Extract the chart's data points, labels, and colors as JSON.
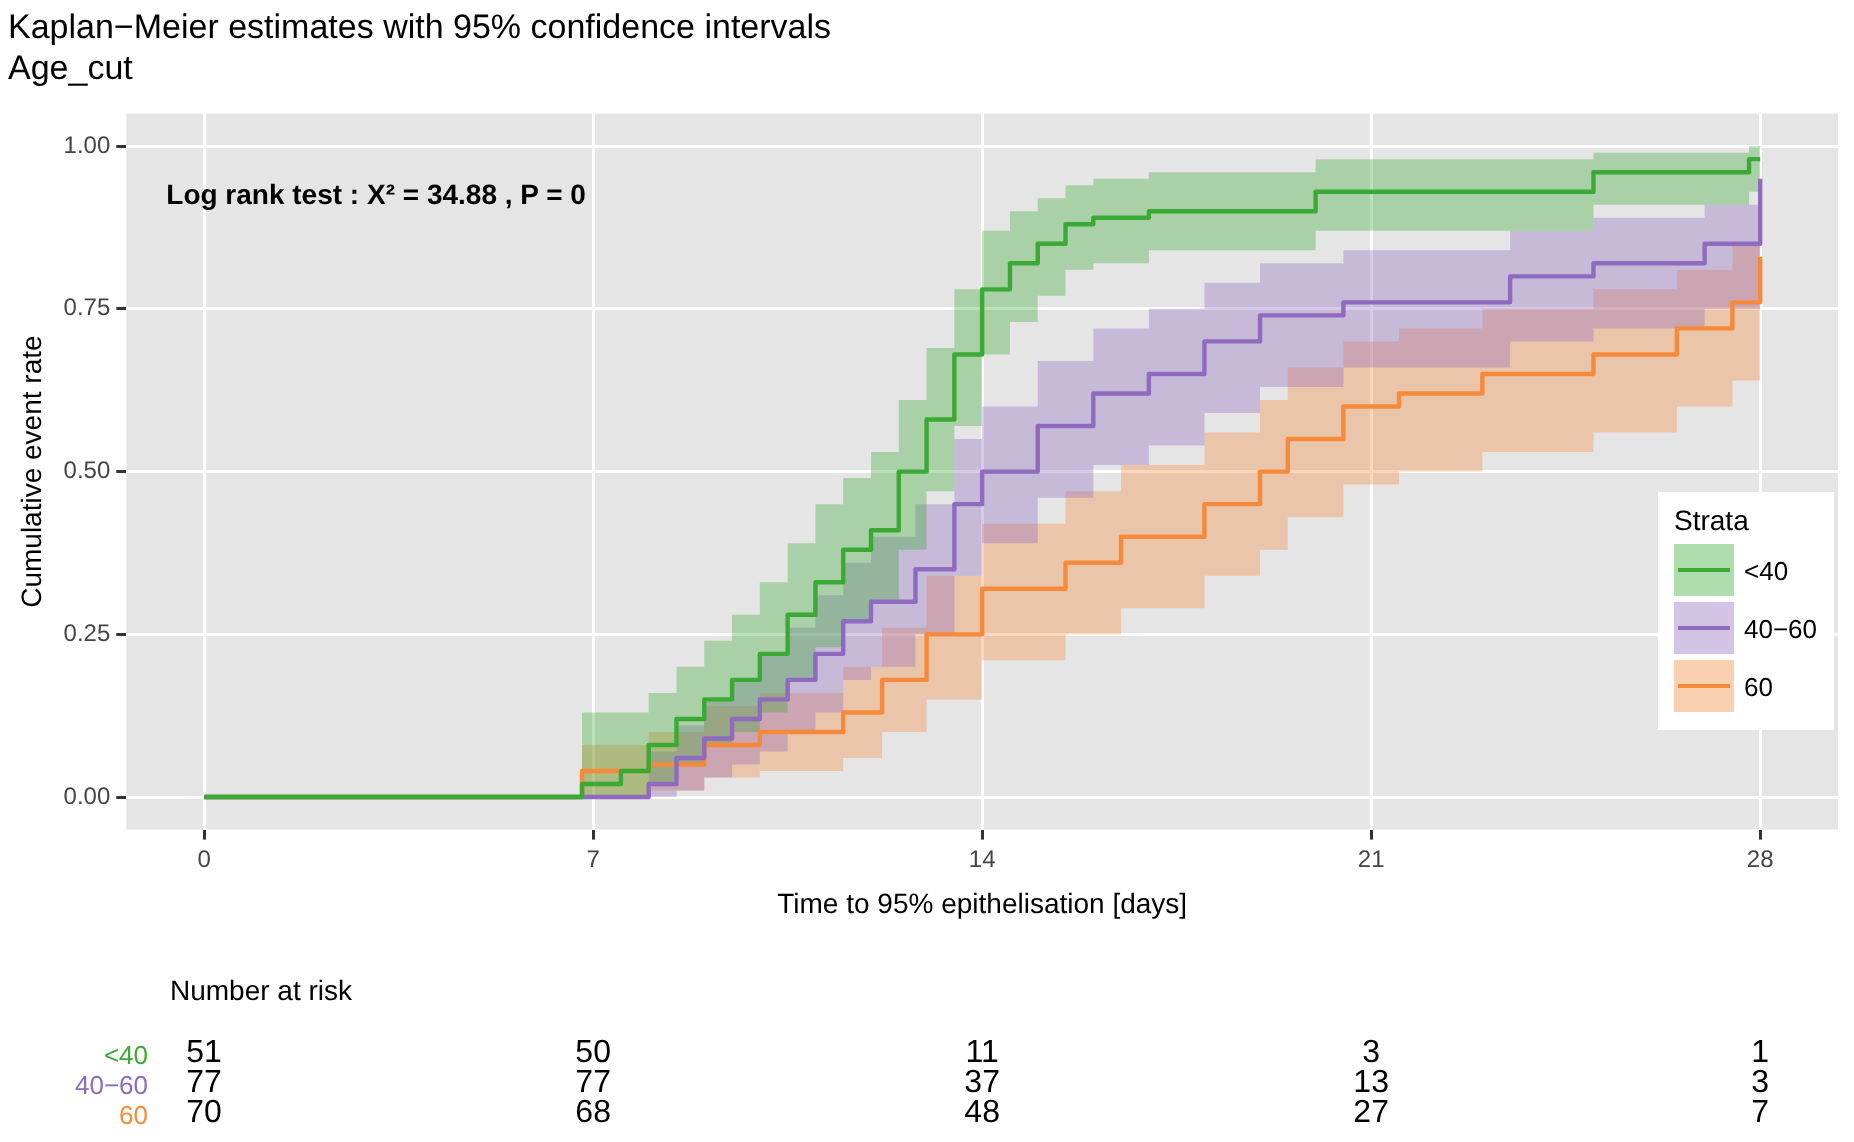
{
  "chart_data": {
    "type": "step",
    "title": "Kaplan−Meier estimates with 95% confidence intervals",
    "subtitle": "Age_cut",
    "xlabel": "Time to 95% epithelisation [days]",
    "ylabel": "Cumulative event rate",
    "legend_title": "Strata",
    "xlim": [
      -1.4,
      29.4
    ],
    "xticks": [
      0,
      7,
      14,
      21,
      28
    ],
    "ylim": [
      -0.05,
      1.05
    ],
    "yticks": [
      {
        "value": 0,
        "label": "0.00"
      },
      {
        "value": 0.25,
        "label": "0.25"
      },
      {
        "value": 0.5,
        "label": "0.50"
      },
      {
        "value": 0.75,
        "label": "0.75"
      },
      {
        "value": 1,
        "label": "1.00"
      }
    ],
    "grid": true,
    "legend": "right",
    "line_style": "solid",
    "marker": "none",
    "series": [
      {
        "name": "<40",
        "color": "#3aaa35",
        "x": [
          0,
          6.8,
          7.5,
          8,
          8.5,
          9,
          9.5,
          10,
          10.5,
          11,
          11.5,
          12,
          12.5,
          13,
          13.5,
          14,
          14.5,
          15,
          15.5,
          16,
          17,
          20,
          25,
          27.8,
          28
        ],
        "values": [
          0,
          0.02,
          0.04,
          0.08,
          0.12,
          0.15,
          0.18,
          0.22,
          0.28,
          0.33,
          0.38,
          0.41,
          0.5,
          0.58,
          0.68,
          0.78,
          0.82,
          0.85,
          0.88,
          0.89,
          0.9,
          0.93,
          0.96,
          0.98,
          0.98
        ],
        "lower": [
          0,
          0,
          0,
          0.02,
          0.05,
          0.08,
          0.1,
          0.13,
          0.18,
          0.23,
          0.27,
          0.3,
          0.38,
          0.47,
          0.57,
          0.68,
          0.73,
          0.77,
          0.81,
          0.82,
          0.84,
          0.87,
          0.91,
          0.93,
          0.93
        ],
        "upper": [
          0,
          0.13,
          0.13,
          0.16,
          0.2,
          0.24,
          0.28,
          0.33,
          0.39,
          0.45,
          0.49,
          0.53,
          0.61,
          0.69,
          0.78,
          0.87,
          0.9,
          0.92,
          0.94,
          0.95,
          0.96,
          0.98,
          0.99,
          1,
          1
        ]
      },
      {
        "name": "40−60",
        "color": "#8e6bbf",
        "x": [
          0,
          8,
          8.5,
          9,
          9.5,
          10,
          10.5,
          11,
          11.5,
          12,
          12.8,
          13.5,
          14,
          15,
          16,
          17,
          18,
          19,
          20.5,
          23.5,
          25,
          27,
          28
        ],
        "values": [
          0,
          0.02,
          0.06,
          0.09,
          0.12,
          0.15,
          0.18,
          0.22,
          0.27,
          0.3,
          0.35,
          0.45,
          0.5,
          0.57,
          0.62,
          0.65,
          0.7,
          0.74,
          0.76,
          0.8,
          0.82,
          0.85,
          0.95
        ],
        "lower": [
          0,
          0,
          0.01,
          0.03,
          0.05,
          0.07,
          0.1,
          0.13,
          0.18,
          0.2,
          0.25,
          0.34,
          0.39,
          0.46,
          0.51,
          0.54,
          0.59,
          0.63,
          0.66,
          0.7,
          0.72,
          0.75,
          0.86
        ],
        "upper": [
          0,
          0.07,
          0.11,
          0.15,
          0.18,
          0.22,
          0.26,
          0.31,
          0.36,
          0.4,
          0.45,
          0.55,
          0.6,
          0.67,
          0.72,
          0.75,
          0.79,
          0.82,
          0.84,
          0.87,
          0.89,
          0.91,
          0.99
        ]
      },
      {
        "name": "60",
        "color": "#f58a3a",
        "x": [
          0,
          6.8,
          8,
          9,
          10,
          11.5,
          12.2,
          13,
          14,
          15.5,
          16.5,
          18,
          19,
          19.5,
          20.5,
          21.5,
          23,
          25,
          26.5,
          27.5,
          28
        ],
        "values": [
          0,
          0.04,
          0.05,
          0.08,
          0.1,
          0.13,
          0.18,
          0.25,
          0.32,
          0.36,
          0.4,
          0.45,
          0.5,
          0.55,
          0.6,
          0.62,
          0.65,
          0.68,
          0.72,
          0.76,
          0.83
        ],
        "lower": [
          0,
          0,
          0.01,
          0.03,
          0.04,
          0.06,
          0.1,
          0.15,
          0.21,
          0.25,
          0.29,
          0.34,
          0.38,
          0.43,
          0.48,
          0.5,
          0.53,
          0.56,
          0.6,
          0.64,
          0.71
        ],
        "upper": [
          0,
          0.08,
          0.1,
          0.14,
          0.16,
          0.2,
          0.26,
          0.34,
          0.42,
          0.47,
          0.51,
          0.56,
          0.61,
          0.66,
          0.7,
          0.72,
          0.75,
          0.78,
          0.81,
          0.85,
          0.9
        ]
      }
    ],
    "annotations": [
      "Log rank test : X² = 34.88 , P = 0",
      "Number at risk",
      "<40",
      "51",
      "50",
      "11",
      "3",
      "1",
      "40−60",
      "77",
      "77",
      "37",
      "13",
      "3",
      "60",
      "70",
      "68",
      "48",
      "27",
      "7"
    ]
  }
}
